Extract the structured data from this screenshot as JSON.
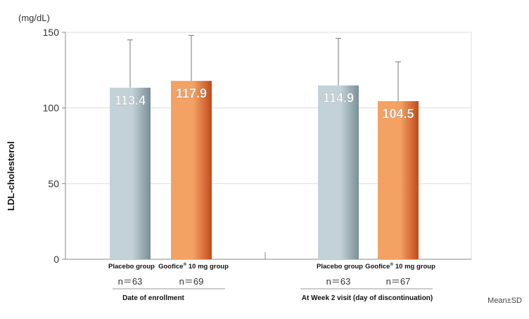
{
  "chart_data": {
    "type": "bar",
    "unit_label": "(mg/dL)",
    "ylabel": "LDL-cholesterol",
    "ylim": [
      0,
      150
    ],
    "yticks": [
      0,
      50,
      100,
      150
    ],
    "grid": true,
    "note": "Mean±SD",
    "groups": [
      {
        "name": "Date of enrollment",
        "bars": [
          {
            "label": "Placebo group",
            "mark": "",
            "label2": "",
            "value": 113.4,
            "value_label": "113.4",
            "sd_upper": 145,
            "n": "n＝63",
            "color": "gray"
          },
          {
            "label": "Goofice",
            "mark": "®",
            "label2": " 10 mg group",
            "value": 117.9,
            "value_label": "117.9",
            "sd_upper": 148,
            "n": "n＝69",
            "color": "orange"
          }
        ]
      },
      {
        "name": "At Week 2 visit (day of discontinuation)",
        "bars": [
          {
            "label": "Placebo group",
            "mark": "",
            "label2": "",
            "value": 114.9,
            "value_label": "114.9",
            "sd_upper": 146,
            "n": "n＝63",
            "color": "gray"
          },
          {
            "label": "Goofice",
            "mark": "®",
            "label2": " 10 mg group",
            "value": 104.5,
            "value_label": "104.5",
            "sd_upper": 130.5,
            "n": "n＝67",
            "color": "orange"
          }
        ]
      }
    ]
  },
  "colors": {
    "gray_dark": "#7a8f96",
    "gray_light": "#c3d2d8",
    "orange_dark": "#c24a1c",
    "orange_light": "#f3a264",
    "grid": "#dddddd",
    "axis": "#888888"
  }
}
